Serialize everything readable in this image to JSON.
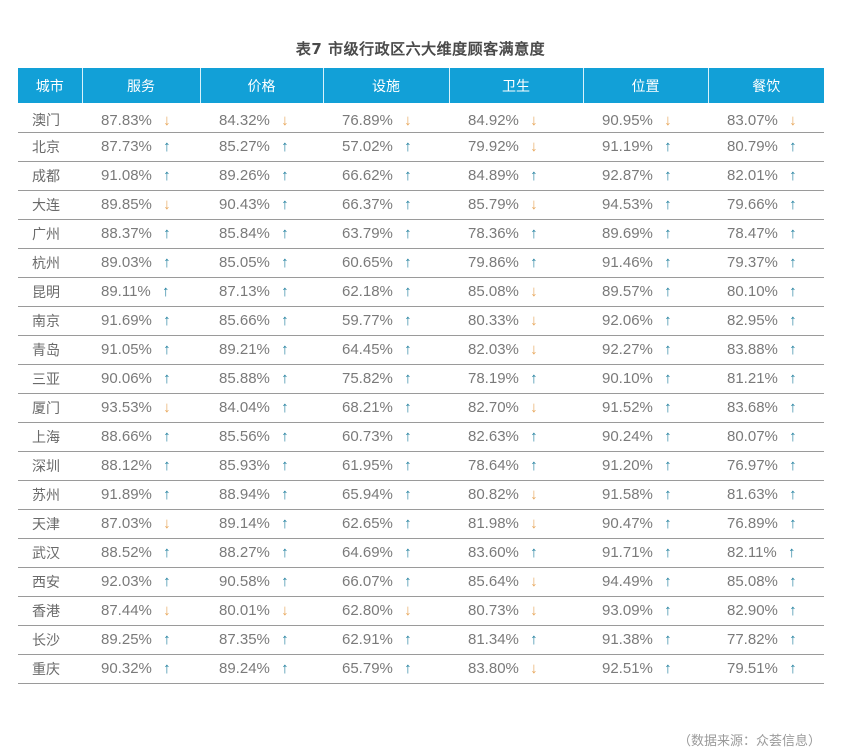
{
  "title": "表7 市级行政区六大维度顾客满意度",
  "columns": [
    "城市",
    "服务",
    "价格",
    "设施",
    "卫生",
    "位置",
    "餐饮"
  ],
  "icons": {
    "up": "↑",
    "down": "↓",
    "up_color": "#1f7f9e",
    "down_color": "#e8a65a"
  },
  "header_color": "#12a0d7",
  "rows": [
    {
      "city": "澳门",
      "cells": [
        {
          "v": "87.83%",
          "d": "down"
        },
        {
          "v": "84.32%",
          "d": "down"
        },
        {
          "v": "76.89%",
          "d": "down"
        },
        {
          "v": "84.92%",
          "d": "down"
        },
        {
          "v": "90.95%",
          "d": "down"
        },
        {
          "v": "83.07%",
          "d": "down"
        }
      ]
    },
    {
      "city": "北京",
      "cells": [
        {
          "v": "87.73%",
          "d": "up"
        },
        {
          "v": "85.27%",
          "d": "up"
        },
        {
          "v": "57.02%",
          "d": "up"
        },
        {
          "v": "79.92%",
          "d": "down"
        },
        {
          "v": "91.19%",
          "d": "up"
        },
        {
          "v": "80.79%",
          "d": "up"
        }
      ]
    },
    {
      "city": "成都",
      "cells": [
        {
          "v": "91.08%",
          "d": "up"
        },
        {
          "v": "89.26%",
          "d": "up"
        },
        {
          "v": "66.62%",
          "d": "up"
        },
        {
          "v": "84.89%",
          "d": "up"
        },
        {
          "v": "92.87%",
          "d": "up"
        },
        {
          "v": "82.01%",
          "d": "up"
        }
      ]
    },
    {
      "city": "大连",
      "cells": [
        {
          "v": "89.85%",
          "d": "down"
        },
        {
          "v": "90.43%",
          "d": "up"
        },
        {
          "v": "66.37%",
          "d": "up"
        },
        {
          "v": "85.79%",
          "d": "down"
        },
        {
          "v": "94.53%",
          "d": "up"
        },
        {
          "v": "79.66%",
          "d": "up"
        }
      ]
    },
    {
      "city": "广州",
      "cells": [
        {
          "v": "88.37%",
          "d": "up"
        },
        {
          "v": "85.84%",
          "d": "up"
        },
        {
          "v": "63.79%",
          "d": "up"
        },
        {
          "v": "78.36%",
          "d": "up"
        },
        {
          "v": "89.69%",
          "d": "up"
        },
        {
          "v": "78.47%",
          "d": "up"
        }
      ]
    },
    {
      "city": "杭州",
      "cells": [
        {
          "v": "89.03%",
          "d": "up"
        },
        {
          "v": "85.05%",
          "d": "up"
        },
        {
          "v": "60.65%",
          "d": "up"
        },
        {
          "v": "79.86%",
          "d": "up"
        },
        {
          "v": "91.46%",
          "d": "up"
        },
        {
          "v": "79.37%",
          "d": "up"
        }
      ]
    },
    {
      "city": "昆明",
      "cells": [
        {
          "v": "89.11%",
          "d": "up"
        },
        {
          "v": "87.13%",
          "d": "up"
        },
        {
          "v": "62.18%",
          "d": "up"
        },
        {
          "v": "85.08%",
          "d": "down"
        },
        {
          "v": "89.57%",
          "d": "up"
        },
        {
          "v": "80.10%",
          "d": "up"
        }
      ]
    },
    {
      "city": "南京",
      "cells": [
        {
          "v": "91.69%",
          "d": "up"
        },
        {
          "v": "85.66%",
          "d": "up"
        },
        {
          "v": "59.77%",
          "d": "up"
        },
        {
          "v": "80.33%",
          "d": "down"
        },
        {
          "v": "92.06%",
          "d": "up"
        },
        {
          "v": "82.95%",
          "d": "up"
        }
      ]
    },
    {
      "city": "青岛",
      "cells": [
        {
          "v": "91.05%",
          "d": "up"
        },
        {
          "v": "89.21%",
          "d": "up"
        },
        {
          "v": "64.45%",
          "d": "up"
        },
        {
          "v": "82.03%",
          "d": "down"
        },
        {
          "v": "92.27%",
          "d": "up"
        },
        {
          "v": "83.88%",
          "d": "up"
        }
      ]
    },
    {
      "city": "三亚",
      "cells": [
        {
          "v": "90.06%",
          "d": "up"
        },
        {
          "v": "85.88%",
          "d": "up"
        },
        {
          "v": "75.82%",
          "d": "up"
        },
        {
          "v": "78.19%",
          "d": "up"
        },
        {
          "v": "90.10%",
          "d": "up"
        },
        {
          "v": "81.21%",
          "d": "up"
        }
      ]
    },
    {
      "city": "厦门",
      "cells": [
        {
          "v": "93.53%",
          "d": "down"
        },
        {
          "v": "84.04%",
          "d": "up"
        },
        {
          "v": "68.21%",
          "d": "up"
        },
        {
          "v": "82.70%",
          "d": "down"
        },
        {
          "v": "91.52%",
          "d": "up"
        },
        {
          "v": "83.68%",
          "d": "up"
        }
      ]
    },
    {
      "city": "上海",
      "cells": [
        {
          "v": "88.66%",
          "d": "up"
        },
        {
          "v": "85.56%",
          "d": "up"
        },
        {
          "v": "60.73%",
          "d": "up"
        },
        {
          "v": "82.63%",
          "d": "up"
        },
        {
          "v": "90.24%",
          "d": "up"
        },
        {
          "v": "80.07%",
          "d": "up"
        }
      ]
    },
    {
      "city": "深圳",
      "cells": [
        {
          "v": "88.12%",
          "d": "up"
        },
        {
          "v": "85.93%",
          "d": "up"
        },
        {
          "v": "61.95%",
          "d": "up"
        },
        {
          "v": "78.64%",
          "d": "up"
        },
        {
          "v": "91.20%",
          "d": "up"
        },
        {
          "v": "76.97%",
          "d": "up"
        }
      ]
    },
    {
      "city": "苏州",
      "cells": [
        {
          "v": "91.89%",
          "d": "up"
        },
        {
          "v": "88.94%",
          "d": "up"
        },
        {
          "v": "65.94%",
          "d": "up"
        },
        {
          "v": "80.82%",
          "d": "down"
        },
        {
          "v": "91.58%",
          "d": "up"
        },
        {
          "v": "81.63%",
          "d": "up"
        }
      ]
    },
    {
      "city": "天津",
      "cells": [
        {
          "v": "87.03%",
          "d": "down"
        },
        {
          "v": "89.14%",
          "d": "up"
        },
        {
          "v": "62.65%",
          "d": "up"
        },
        {
          "v": "81.98%",
          "d": "down"
        },
        {
          "v": "90.47%",
          "d": "up"
        },
        {
          "v": "76.89%",
          "d": "up"
        }
      ]
    },
    {
      "city": "武汉",
      "cells": [
        {
          "v": "88.52%",
          "d": "up"
        },
        {
          "v": "88.27%",
          "d": "up"
        },
        {
          "v": "64.69%",
          "d": "up"
        },
        {
          "v": "83.60%",
          "d": "up"
        },
        {
          "v": "91.71%",
          "d": "up"
        },
        {
          "v": "82.11%",
          "d": "up"
        }
      ]
    },
    {
      "city": "西安",
      "cells": [
        {
          "v": "92.03%",
          "d": "up"
        },
        {
          "v": "90.58%",
          "d": "up"
        },
        {
          "v": "66.07%",
          "d": "up"
        },
        {
          "v": "85.64%",
          "d": "down"
        },
        {
          "v": "94.49%",
          "d": "up"
        },
        {
          "v": "85.08%",
          "d": "up"
        }
      ]
    },
    {
      "city": "香港",
      "cells": [
        {
          "v": "87.44%",
          "d": "down"
        },
        {
          "v": "80.01%",
          "d": "down"
        },
        {
          "v": "62.80%",
          "d": "down"
        },
        {
          "v": "80.73%",
          "d": "down"
        },
        {
          "v": "93.09%",
          "d": "up"
        },
        {
          "v": "82.90%",
          "d": "up"
        }
      ]
    },
    {
      "city": "长沙",
      "cells": [
        {
          "v": "89.25%",
          "d": "up"
        },
        {
          "v": "87.35%",
          "d": "up"
        },
        {
          "v": "62.91%",
          "d": "up"
        },
        {
          "v": "81.34%",
          "d": "up"
        },
        {
          "v": "91.38%",
          "d": "up"
        },
        {
          "v": "77.82%",
          "d": "up"
        }
      ]
    },
    {
      "city": "重庆",
      "cells": [
        {
          "v": "90.32%",
          "d": "up"
        },
        {
          "v": "89.24%",
          "d": "up"
        },
        {
          "v": "65.79%",
          "d": "up"
        },
        {
          "v": "83.80%",
          "d": "down"
        },
        {
          "v": "92.51%",
          "d": "up"
        },
        {
          "v": "79.51%",
          "d": "up"
        }
      ]
    }
  ],
  "source": "（数据来源：众荟信息）"
}
